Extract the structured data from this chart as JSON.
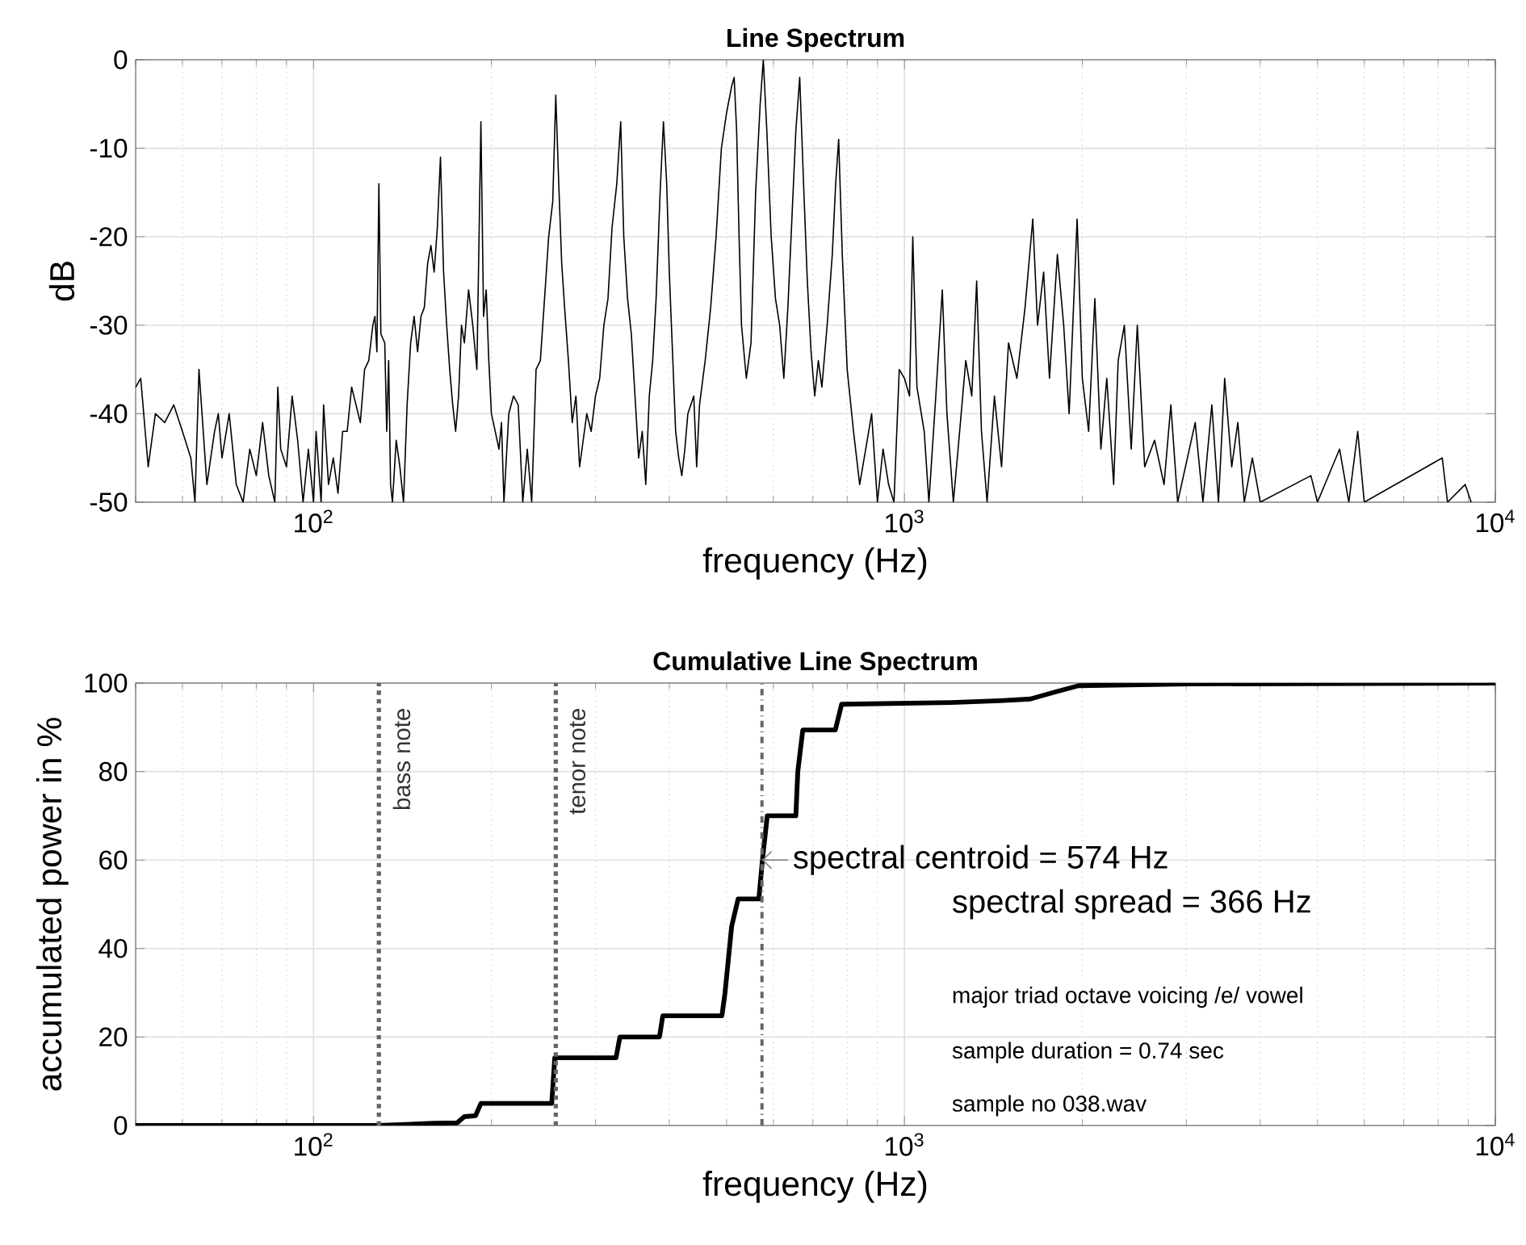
{
  "chart_data": [
    {
      "type": "line",
      "title": "Line Spectrum",
      "xlabel": "frequency (Hz)",
      "ylabel": "dB",
      "log": "x",
      "grid": true,
      "xlim": [
        50,
        10000
      ],
      "ylim": [
        -50,
        0
      ],
      "xticks": [
        {
          "value": 100,
          "label": "10$^{2}$"
        },
        {
          "value": 1000,
          "label": "10$^{3}$"
        },
        {
          "value": 10000,
          "label": "10$^{4}$"
        }
      ],
      "yticks": [
        -50,
        -40,
        -30,
        -20,
        -10,
        0
      ],
      "series": [
        {
          "color": "#000000",
          "x": [
            50,
            51,
            52.5,
            54,
            56,
            58,
            60,
            62,
            63,
            64,
            66,
            68,
            69,
            70,
            72,
            74,
            76,
            78,
            80,
            82,
            84,
            86,
            87,
            88,
            90,
            92,
            94,
            96,
            98,
            100,
            101,
            103,
            104,
            106,
            108,
            110,
            112,
            114,
            116,
            118,
            120,
            122,
            124,
            126,
            127,
            128,
            129,
            130,
            132,
            133,
            134,
            135,
            136,
            138,
            140,
            142,
            144,
            146,
            148,
            150,
            152,
            154,
            156,
            158,
            160,
            162,
            164,
            166,
            168,
            170,
            172,
            174,
            176,
            178,
            180,
            183,
            186,
            189,
            192,
            194,
            196,
            198,
            200,
            203,
            206,
            208,
            210,
            214,
            218,
            222,
            226,
            230,
            234,
            238,
            242,
            246,
            250,
            254,
            257,
            260,
            263,
            266,
            270,
            274,
            278,
            282,
            286,
            290,
            295,
            300,
            305,
            310,
            315,
            320,
            326,
            331,
            335,
            340,
            345,
            350,
            355,
            360,
            365,
            370,
            375,
            380,
            386,
            391,
            396,
            400,
            405,
            410,
            415,
            420,
            425,
            430,
            440,
            445,
            450,
            460,
            470,
            480,
            490,
            500,
            510,
            515,
            520,
            525,
            530,
            540,
            550,
            560,
            570,
            577,
            585,
            595,
            605,
            615,
            625,
            635,
            645,
            655,
            665,
            675,
            685,
            695,
            705,
            715,
            725,
            740,
            755,
            765,
            774,
            785,
            800,
            820,
            840,
            860,
            880,
            900,
            920,
            940,
            960,
            980,
            1000,
            1020,
            1033,
            1050,
            1080,
            1100,
            1130,
            1159,
            1180,
            1210,
            1240,
            1270,
            1300,
            1325,
            1350,
            1380,
            1420,
            1460,
            1500,
            1550,
            1600,
            1649,
            1680,
            1720,
            1760,
            1815,
            1860,
            1900,
            1960,
            2000,
            2050,
            2100,
            2150,
            2200,
            2260,
            2300,
            2356,
            2420,
            2478,
            2550,
            2650,
            2750,
            2824,
            2900,
            3105,
            3200,
            3313,
            3400,
            3483,
            3580,
            3666,
            3760,
            3880,
            4000,
            4874,
            5000,
            5450,
            5650,
            5850,
            6000,
            8130,
            8300,
            8890,
            9100
          ],
          "values": [
            -37,
            -36,
            -46,
            -40,
            -41,
            -39,
            -42,
            -45,
            -50,
            -35,
            -48,
            -42,
            -40,
            -45,
            -40,
            -48,
            -50,
            -44,
            -47,
            -41,
            -47,
            -50,
            -37,
            -44,
            -46,
            -38,
            -43,
            -50,
            -44,
            -50,
            -42,
            -50,
            -39,
            -48,
            -45,
            -49,
            -42,
            -42,
            -37,
            -39,
            -41,
            -35,
            -34,
            -30,
            -29,
            -33,
            -14,
            -31,
            -32,
            -42,
            -34,
            -48,
            -50,
            -43,
            -46,
            -50,
            -39,
            -32,
            -29,
            -33,
            -29,
            -28,
            -23,
            -21,
            -24,
            -19,
            -11,
            -24,
            -30,
            -35,
            -39,
            -42,
            -38,
            -30,
            -32,
            -26,
            -30,
            -35,
            -7,
            -29,
            -26,
            -34,
            -40,
            -42,
            -44,
            -41,
            -50,
            -40,
            -38,
            -39,
            -50,
            -44,
            -50,
            -35,
            -34,
            -27,
            -20,
            -16,
            -4,
            -14,
            -23,
            -28,
            -34,
            -41,
            -38,
            -46,
            -43,
            -40,
            -42,
            -38,
            -36,
            -30,
            -27,
            -19,
            -14,
            -7,
            -20,
            -27,
            -31,
            -38,
            -45,
            -42,
            -48,
            -38,
            -34,
            -27,
            -15,
            -7,
            -14,
            -24,
            -33,
            -42,
            -45,
            -47,
            -44,
            -40,
            -38,
            -46,
            -39,
            -34,
            -28,
            -20,
            -10,
            -6,
            -3,
            -2,
            -8,
            -20,
            -30,
            -36,
            -32,
            -15,
            -5,
            0,
            -8,
            -20,
            -27,
            -30,
            -36,
            -28,
            -18,
            -8,
            -2,
            -14,
            -25,
            -33,
            -38,
            -34,
            -37,
            -30,
            -22,
            -14,
            -9,
            -22,
            -35,
            -42,
            -48,
            -44,
            -40,
            -50,
            -44,
            -48,
            -50,
            -35,
            -36,
            -38,
            -20,
            -37,
            -42,
            -50,
            -38,
            -26,
            -40,
            -50,
            -42,
            -34,
            -38,
            -25,
            -42,
            -50,
            -38,
            -46,
            -32,
            -36,
            -28,
            -18,
            -30,
            -24,
            -36,
            -22,
            -30,
            -40,
            -18,
            -36,
            -42,
            -27,
            -44,
            -36,
            -48,
            -34,
            -30,
            -44,
            -30,
            -46,
            -43,
            -48,
            -39,
            -50,
            -41,
            -50,
            -39,
            -50,
            -36,
            -46,
            -41,
            -50,
            -45,
            -50,
            -47,
            -50,
            -44,
            -50,
            -42,
            -50,
            -45,
            -50,
            -48,
            -50
          ]
        }
      ]
    },
    {
      "type": "line",
      "title": "Cumulative Line Spectrum",
      "xlabel": "frequency (Hz)",
      "ylabel": "accumulated power in %",
      "log": "x",
      "grid": true,
      "xlim": [
        50,
        10000
      ],
      "ylim": [
        0,
        100
      ],
      "xticks": [
        {
          "value": 100,
          "label": "10$^{2}$"
        },
        {
          "value": 1000,
          "label": "10$^{3}$"
        },
        {
          "value": 10000,
          "label": "10$^{4}$"
        }
      ],
      "yticks": [
        0,
        20,
        40,
        60,
        80,
        100
      ],
      "series": [
        {
          "color": "#000000",
          "x": [
            50,
            129,
            160,
            175,
            180,
            188,
            192,
            253,
            256,
            325,
            330,
            385,
            390,
            491,
            497,
            510,
            523,
            567,
            575,
            586,
            655,
            660,
            673,
            764,
            783,
            1200,
            1450,
            1633,
            1800,
            1972,
            3034,
            10000
          ],
          "values": [
            0,
            0,
            0.5,
            0.6,
            2,
            2.2,
            5,
            5,
            15.3,
            15.3,
            20,
            20,
            24.8,
            24.8,
            30,
            45,
            51.2,
            51.2,
            60,
            70,
            70,
            80,
            89.4,
            89.4,
            95.2,
            95.6,
            96,
            96.4,
            98,
            99.4,
            99.8,
            100
          ]
        }
      ],
      "ref_lines": [
        {
          "axis": "x",
          "value": 129,
          "label": "bass note",
          "color": "#666666",
          "line_style": "dotted"
        },
        {
          "axis": "x",
          "value": 257,
          "label": "tenor note",
          "color": "#666666",
          "line_style": "dotted"
        },
        {
          "axis": "x",
          "value": 574,
          "color": "#666666",
          "line_style": "dashdot"
        }
      ],
      "annotations": [
        {
          "text": "spectral centroid = 574 Hz",
          "x": 574,
          "y": 60
        },
        "spectral spread  = 366 Hz",
        "major triad octave voicing /e/ vowel",
        "sample duration  = 0.74 sec",
        "sample no 038.wav"
      ]
    }
  ]
}
